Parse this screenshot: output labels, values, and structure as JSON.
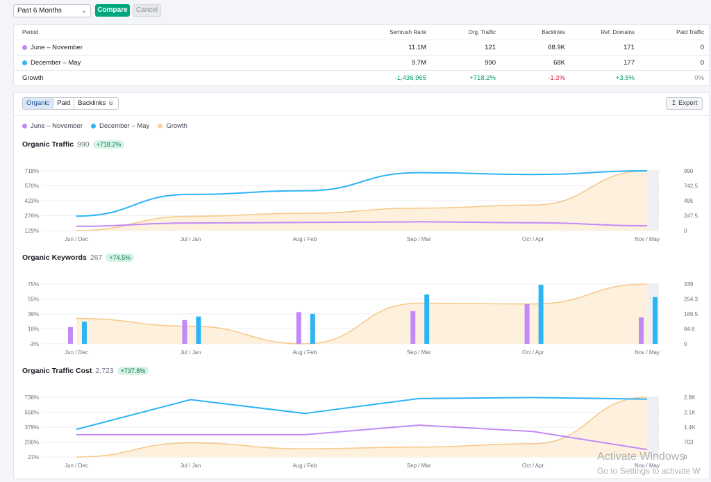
{
  "toolbar": {
    "period_select": "Past 6 Months",
    "compare_label": "Compare",
    "cancel_label": "Cancel"
  },
  "table": {
    "headers": [
      "Period",
      "Semrush Rank",
      "Org. Traffic",
      "Backlinks",
      "Ref. Domains",
      "Paid Traffic"
    ],
    "rows": [
      {
        "period": "June – November",
        "rank": "11.1M",
        "traffic": "121",
        "backlinks": "68.9K",
        "domains": "171",
        "paid": "0",
        "color": "#c08af7"
      },
      {
        "period": "December – May",
        "rank": "9.7M",
        "traffic": "990",
        "backlinks": "68K",
        "domains": "177",
        "paid": "0",
        "color": "#2db4f5"
      }
    ],
    "growth": {
      "label": "Growth",
      "rank": "-1,436,965",
      "traffic": "+718.2%",
      "backlinks": "-1.3%",
      "domains": "+3.5%",
      "paid": "0%"
    }
  },
  "tabs": [
    "Organic",
    "Paid",
    "Backlinks"
  ],
  "export_label": "Export",
  "legend": [
    {
      "label": "June – November",
      "color": "#c08af7"
    },
    {
      "label": "December – May",
      "color": "#2db4f5"
    },
    {
      "label": "Growth",
      "color": "#fdd39a"
    }
  ],
  "sections": {
    "traffic": {
      "title": "Organic Traffic",
      "value": "990",
      "change": "+718.2%"
    },
    "keywords": {
      "title": "Organic Keywords",
      "value": "267",
      "change": "+74.5%"
    },
    "cost": {
      "title": "Organic Traffic Cost",
      "value": "2,723",
      "change": "+737.8%"
    }
  },
  "chart_data": [
    {
      "type": "line",
      "title": "Organic Traffic",
      "categories": [
        "Jun / Dec",
        "Jul / Jan",
        "Aug / Feb",
        "Sep / Mar",
        "Oct / Apr",
        "Nov / May"
      ],
      "left_axis_ticks": [
        "718%",
        "570%",
        "423%",
        "276%",
        "129%"
      ],
      "right_axis_ticks": [
        "990",
        "742.5",
        "495",
        "247.5",
        "0"
      ],
      "right_axis_range": [
        0,
        990
      ],
      "left_axis_range": [
        129,
        718
      ],
      "series": [
        {
          "name": "June – November",
          "axis": "right",
          "values": [
            70,
            125,
            135,
            145,
            130,
            80
          ]
        },
        {
          "name": "December – May",
          "axis": "right",
          "values": [
            240,
            600,
            660,
            960,
            930,
            990
          ]
        },
        {
          "name": "Growth",
          "axis": "left",
          "values": [
            129,
            270,
            300,
            350,
            380,
            718
          ]
        }
      ]
    },
    {
      "type": "bar",
      "title": "Organic Keywords",
      "categories": [
        "Jun / Dec",
        "Jul / Jan",
        "Aug / Feb",
        "Sep / Mar",
        "Oct / Apr",
        "Nov / May"
      ],
      "left_axis_ticks": [
        "75%",
        "55%",
        "36%",
        "16%",
        "-3%"
      ],
      "right_axis_ticks": [
        "339",
        "254.3",
        "169.5",
        "84.8",
        "0"
      ],
      "right_axis_range": [
        0,
        339
      ],
      "left_axis_range": [
        -3,
        75
      ],
      "series": [
        {
          "name": "June – November",
          "axis": "right",
          "values": [
            95,
            135,
            180,
            185,
            225,
            150
          ]
        },
        {
          "name": "December – May",
          "axis": "right",
          "values": [
            125,
            155,
            170,
            280,
            335,
            265
          ]
        },
        {
          "name": "Growth",
          "axis": "left",
          "values": [
            30,
            20,
            -3,
            50,
            49,
            75
          ]
        }
      ]
    },
    {
      "type": "line",
      "title": "Organic Traffic Cost",
      "categories": [
        "Jun / Dec",
        "Jul / Jan",
        "Aug / Feb",
        "Sep / Mar",
        "Oct / Apr",
        "Nov / May"
      ],
      "left_axis_ticks": [
        "738%",
        "558%",
        "379%",
        "200%",
        "21%"
      ],
      "right_axis_ticks": [
        "2.8K",
        "2.1K",
        "1.4K",
        "703",
        "0"
      ],
      "right_axis_range": [
        0,
        2812
      ],
      "left_axis_range": [
        21,
        738
      ],
      "series": [
        {
          "name": "June – November",
          "axis": "right",
          "values": [
            1050,
            1050,
            1050,
            1500,
            1200,
            350
          ]
        },
        {
          "name": "December – May",
          "axis": "right",
          "values": [
            1300,
            2700,
            2050,
            2750,
            2800,
            2723
          ]
        },
        {
          "name": "Growth",
          "axis": "left",
          "values": [
            21,
            190,
            120,
            140,
            180,
            738
          ]
        }
      ]
    }
  ],
  "watermark": {
    "line1": "Activate Windows",
    "line2": "Go to Settings to activate W"
  }
}
